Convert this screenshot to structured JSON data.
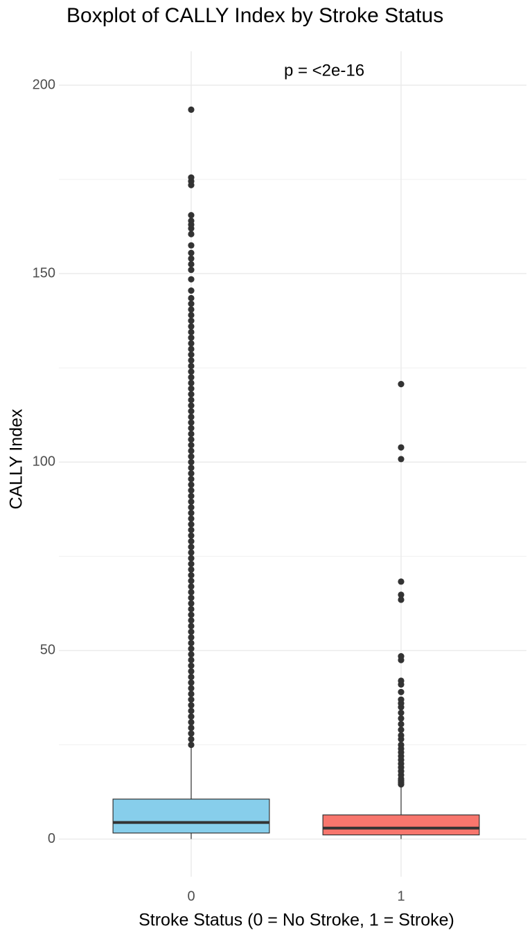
{
  "chart_data": {
    "type": "boxplot",
    "title": "Boxplot of CALLY Index by Stroke Status",
    "annotation": "p = <2e-16",
    "xlabel": "Stroke Status (0 = No Stroke, 1 = Stroke)",
    "ylabel": "CALLY Index",
    "categories": [
      "0",
      "1"
    ],
    "ylim": [
      -10,
      209
    ],
    "yticks": [
      0,
      50,
      100,
      150,
      200
    ],
    "minor_yticks": [
      25,
      75,
      125,
      175
    ],
    "grid": true,
    "outlier_color": "#333333",
    "boxes": [
      {
        "color": "#87CEEB",
        "whisker_low": 0,
        "q1": 1.6,
        "median": 4.4,
        "q3": 10.6,
        "whisker_high": 24.2,
        "outliers": [
          25,
          26.5,
          28,
          29.5,
          31,
          32.5,
          34,
          35.5,
          37,
          38.5,
          40,
          41.5,
          43,
          44.5,
          46,
          47.5,
          49,
          50.5,
          52,
          53.5,
          55,
          56.5,
          58,
          59.5,
          61,
          62.5,
          64,
          65.5,
          67,
          68.5,
          70,
          71.5,
          73,
          74.5,
          76,
          77.5,
          79,
          80.5,
          82,
          83.5,
          85,
          86.5,
          88,
          89.5,
          91,
          92.5,
          94,
          95.5,
          97,
          98.5,
          100,
          101.5,
          103,
          104.5,
          106,
          107.5,
          109,
          110.5,
          112,
          113.5,
          115,
          116.5,
          118,
          119.5,
          121,
          122.5,
          124,
          125.5,
          127,
          128.5,
          130,
          131.5,
          133,
          134.5,
          136,
          137.5,
          139,
          140.5,
          142,
          143.5,
          145.5,
          148.5,
          151,
          152.5,
          154,
          155.5,
          157.5,
          160.5,
          162,
          163,
          164,
          165.5,
          173.5,
          174.5,
          175.5,
          193.5
        ]
      },
      {
        "color": "#F8766D",
        "whisker_low": 0,
        "q1": 1.1,
        "median": 2.9,
        "q3": 6.4,
        "whisker_high": 14.1,
        "outliers": [
          14.5,
          15,
          15.5,
          16,
          17,
          18,
          19,
          20,
          21,
          22,
          23,
          24,
          25,
          26.5,
          27.5,
          29,
          30.5,
          32,
          33.5,
          35,
          36,
          37,
          39,
          41,
          42,
          47.5,
          48.5,
          63.5,
          64.8,
          68.3,
          100.8,
          103.9,
          120.7
        ]
      }
    ]
  }
}
